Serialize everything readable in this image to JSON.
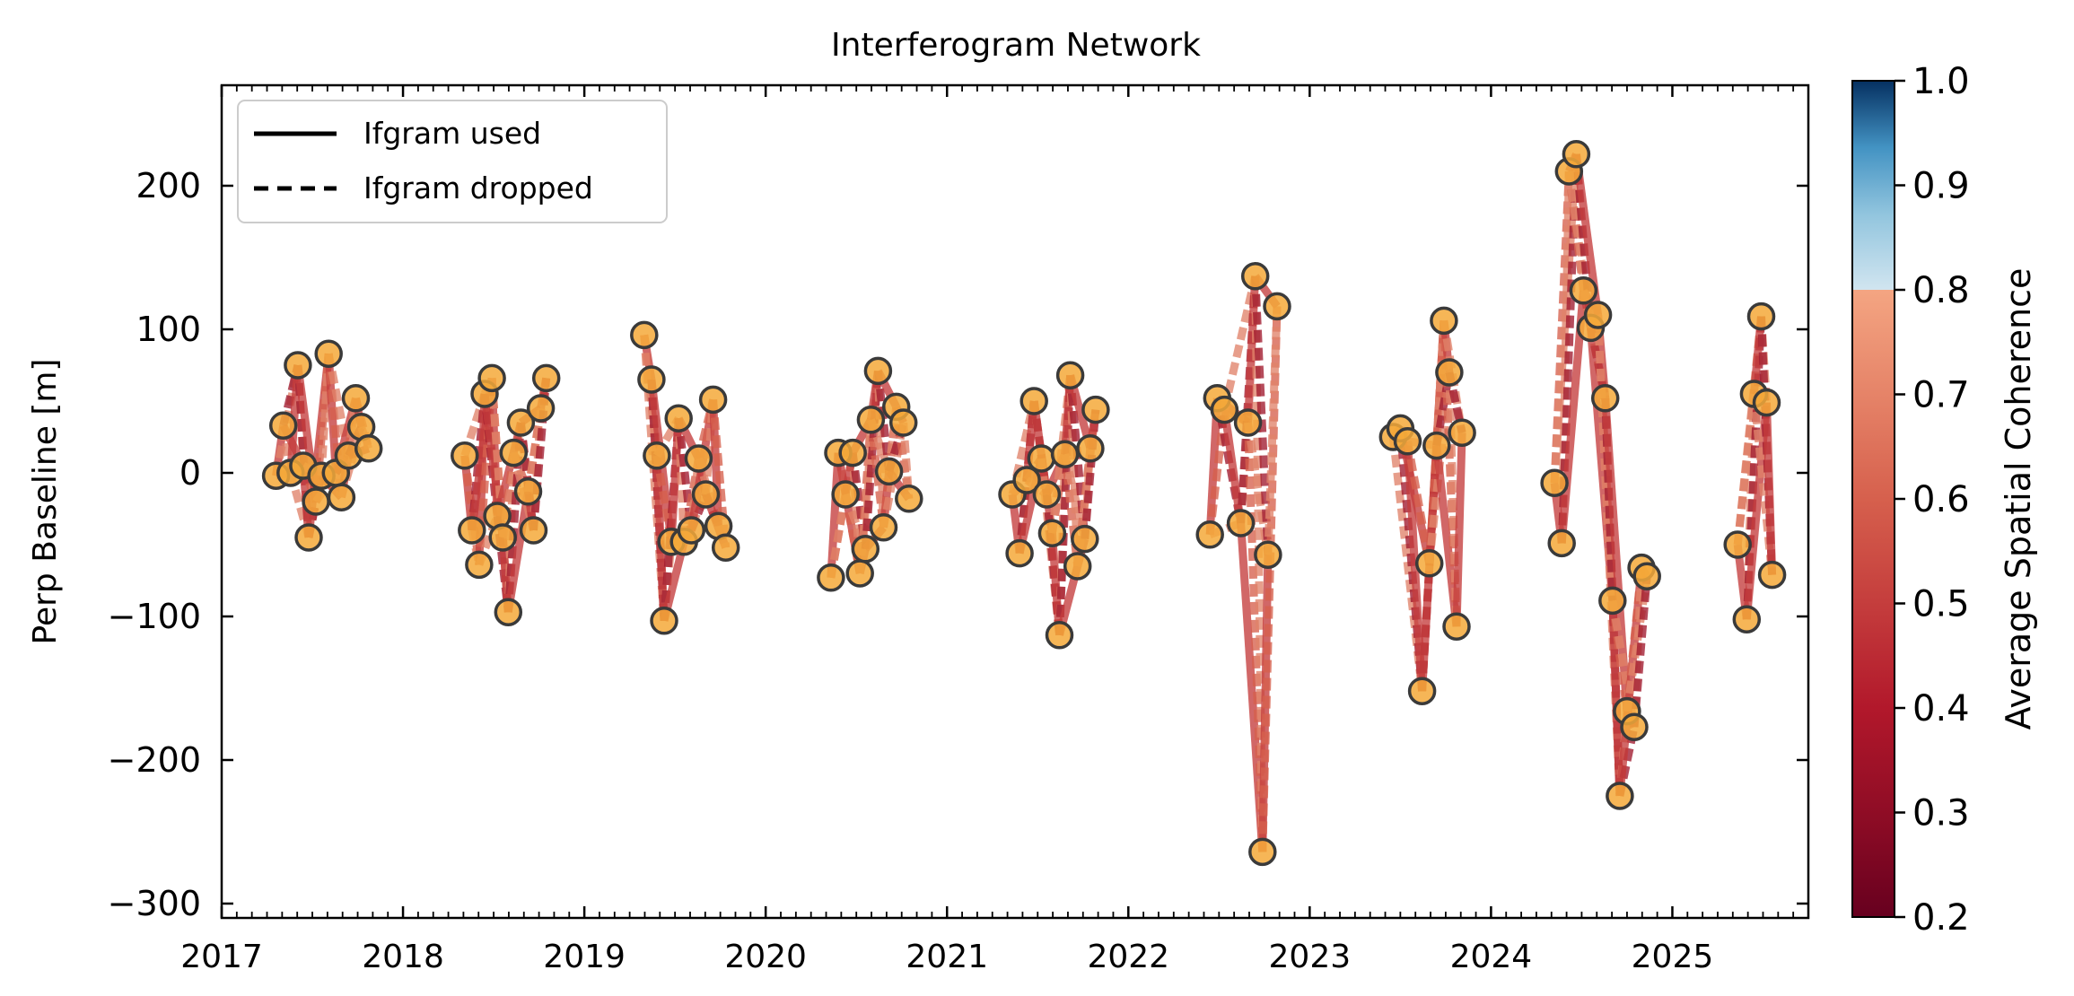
{
  "chart_data": {
    "type": "scatter",
    "title": "Interferogram Network",
    "xlabel": "",
    "ylabel": "Perp Baseline [m]",
    "xlim": [
      2017.0,
      2025.75
    ],
    "ylim": [
      -310,
      270
    ],
    "x_ticks": [
      "2017",
      "2018",
      "2019",
      "2020",
      "2021",
      "2022",
      "2023",
      "2024",
      "2025"
    ],
    "y_ticks": [
      200,
      100,
      0,
      -100,
      -200,
      -300
    ],
    "y_tick_labels": [
      "200",
      "100",
      "0",
      "−100",
      "−200",
      "−300"
    ],
    "legend": {
      "position": "top-left",
      "entries": [
        {
          "label": "Ifgram used",
          "style": "solid"
        },
        {
          "label": "Ifgram dropped",
          "style": "dashed"
        }
      ]
    },
    "colorbar": {
      "label": "Average Spatial Coherence",
      "range": [
        0.2,
        1.0
      ],
      "ticks": [
        "1.0",
        "0.9",
        "0.8",
        "0.7",
        "0.6",
        "0.5",
        "0.4",
        "0.3",
        "0.2"
      ],
      "colormap": "RdBu"
    },
    "marker_color": "#f4a93a",
    "seasons": [
      {
        "year": 2017,
        "points": [
          [
            2017.3,
            -2
          ],
          [
            2017.34,
            33
          ],
          [
            2017.38,
            0
          ],
          [
            2017.42,
            75
          ],
          [
            2017.45,
            5
          ],
          [
            2017.48,
            -45
          ],
          [
            2017.52,
            -20
          ],
          [
            2017.55,
            -2
          ],
          [
            2017.59,
            83
          ],
          [
            2017.63,
            0
          ],
          [
            2017.66,
            -17
          ],
          [
            2017.7,
            12
          ],
          [
            2017.74,
            52
          ],
          [
            2017.77,
            32
          ],
          [
            2017.81,
            17
          ]
        ]
      },
      {
        "year": 2018,
        "points": [
          [
            2018.34,
            12
          ],
          [
            2018.38,
            -40
          ],
          [
            2018.42,
            -64
          ],
          [
            2018.45,
            55
          ],
          [
            2018.49,
            66
          ],
          [
            2018.52,
            -30
          ],
          [
            2018.55,
            -45
          ],
          [
            2018.58,
            -97
          ],
          [
            2018.61,
            14
          ],
          [
            2018.65,
            35
          ],
          [
            2018.69,
            -13
          ],
          [
            2018.72,
            -40
          ],
          [
            2018.76,
            45
          ],
          [
            2018.79,
            66
          ]
        ]
      },
      {
        "year": 2019,
        "points": [
          [
            2019.33,
            96
          ],
          [
            2019.37,
            65
          ],
          [
            2019.4,
            12
          ],
          [
            2019.44,
            -103
          ],
          [
            2019.48,
            -48
          ],
          [
            2019.52,
            38
          ],
          [
            2019.55,
            -48
          ],
          [
            2019.59,
            -40
          ],
          [
            2019.63,
            10
          ],
          [
            2019.67,
            -15
          ],
          [
            2019.71,
            51
          ],
          [
            2019.74,
            -37
          ],
          [
            2019.78,
            -52
          ]
        ]
      },
      {
        "year": 2020,
        "points": [
          [
            2020.36,
            -73
          ],
          [
            2020.4,
            14
          ],
          [
            2020.44,
            -15
          ],
          [
            2020.48,
            14
          ],
          [
            2020.52,
            -70
          ],
          [
            2020.55,
            -53
          ],
          [
            2020.58,
            37
          ],
          [
            2020.62,
            71
          ],
          [
            2020.65,
            -38
          ],
          [
            2020.68,
            1
          ],
          [
            2020.72,
            46
          ],
          [
            2020.76,
            35
          ],
          [
            2020.79,
            -18
          ]
        ]
      },
      {
        "year": 2021,
        "points": [
          [
            2021.36,
            -15
          ],
          [
            2021.4,
            -56
          ],
          [
            2021.44,
            -5
          ],
          [
            2021.48,
            50
          ],
          [
            2021.52,
            10
          ],
          [
            2021.55,
            -15
          ],
          [
            2021.58,
            -42
          ],
          [
            2021.62,
            -113
          ],
          [
            2021.65,
            13
          ],
          [
            2021.68,
            68
          ],
          [
            2021.72,
            -65
          ],
          [
            2021.76,
            -46
          ],
          [
            2021.79,
            17
          ],
          [
            2021.82,
            44
          ]
        ]
      },
      {
        "year": 2022,
        "points": [
          [
            2022.45,
            -43
          ],
          [
            2022.49,
            52
          ],
          [
            2022.53,
            44
          ],
          [
            2022.62,
            -35
          ],
          [
            2022.66,
            35
          ],
          [
            2022.7,
            137
          ],
          [
            2022.74,
            -264
          ],
          [
            2022.77,
            -57
          ],
          [
            2022.82,
            116
          ]
        ]
      },
      {
        "year": 2023,
        "points": [
          [
            2023.46,
            25
          ],
          [
            2023.5,
            31
          ],
          [
            2023.54,
            22
          ],
          [
            2023.62,
            -152
          ],
          [
            2023.66,
            -63
          ],
          [
            2023.7,
            19
          ],
          [
            2023.74,
            106
          ],
          [
            2023.77,
            70
          ],
          [
            2023.81,
            -107
          ],
          [
            2023.84,
            28
          ]
        ]
      },
      {
        "year": 2024,
        "points": [
          [
            2024.35,
            -7
          ],
          [
            2024.39,
            -49
          ],
          [
            2024.43,
            210
          ],
          [
            2024.47,
            222
          ],
          [
            2024.51,
            127
          ],
          [
            2024.55,
            101
          ],
          [
            2024.59,
            110
          ],
          [
            2024.63,
            52
          ],
          [
            2024.67,
            -89
          ],
          [
            2024.71,
            -225
          ],
          [
            2024.75,
            -166
          ],
          [
            2024.79,
            -177
          ],
          [
            2024.83,
            -66
          ],
          [
            2024.86,
            -72
          ]
        ]
      },
      {
        "year": 2025,
        "points": [
          [
            2025.36,
            -50
          ],
          [
            2025.41,
            -102
          ],
          [
            2025.45,
            55
          ],
          [
            2025.49,
            109
          ],
          [
            2025.52,
            49
          ],
          [
            2025.55,
            -71
          ]
        ]
      }
    ]
  }
}
